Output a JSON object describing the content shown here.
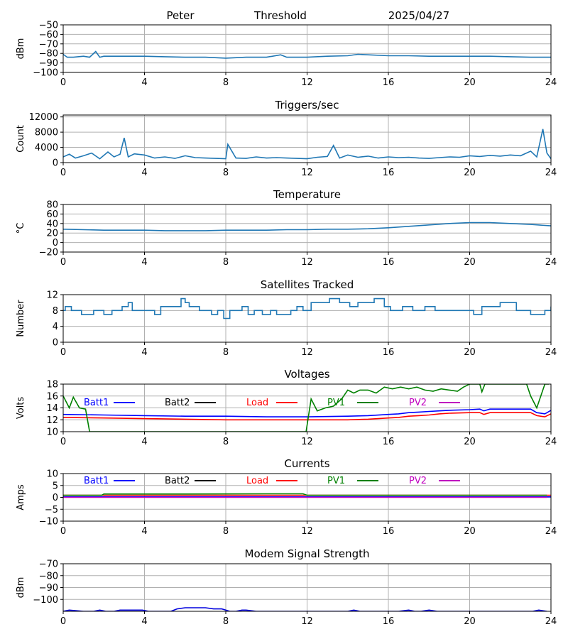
{
  "header": {
    "station": "Peter",
    "mode": "Threshold",
    "date": "2025/04/27"
  },
  "colors": {
    "default_series": "#1f77b4",
    "batt1": "#0000ff",
    "batt2": "#000000",
    "load": "#ff0000",
    "pv1": "#008000",
    "pv2": "#bf00bf",
    "grid": "#b0b0b0"
  },
  "chart_data": [
    {
      "type": "line",
      "title": "",
      "ylabel": "dBm",
      "xlim": [
        0,
        24
      ],
      "xticks": [
        0,
        4,
        8,
        12,
        16,
        20,
        24
      ],
      "ylim": [
        -100,
        -50
      ],
      "yticks": [
        -100,
        -90,
        -80,
        -70,
        -60,
        -50
      ],
      "grid": true,
      "series": [
        {
          "color": "#1f77b4",
          "x": [
            0,
            0.2,
            0.5,
            1.0,
            1.3,
            1.6,
            1.8,
            2.0,
            3,
            4,
            5,
            6,
            7,
            8,
            9,
            10,
            10.7,
            11,
            12,
            13,
            14,
            14.5,
            15,
            16,
            17,
            18,
            19,
            20,
            21,
            22,
            23,
            24
          ],
          "y": [
            -81,
            -84,
            -84,
            -83,
            -84,
            -78,
            -84,
            -83,
            -83,
            -83,
            -83.5,
            -84,
            -84,
            -85,
            -84,
            -84,
            -81.5,
            -84,
            -84,
            -83,
            -82.5,
            -81,
            -81.5,
            -82.5,
            -82.5,
            -83,
            -83,
            -83,
            -83,
            -83.5,
            -84,
            -84
          ]
        }
      ]
    },
    {
      "type": "line",
      "title": "Triggers/sec",
      "ylabel": "Count",
      "xlim": [
        0,
        24
      ],
      "xticks": [
        0,
        4,
        8,
        12,
        16,
        20,
        24
      ],
      "ylim": [
        0,
        12500
      ],
      "yticks": [
        0,
        4000,
        8000,
        12000
      ],
      "grid": true,
      "series": [
        {
          "color": "#1f77b4",
          "x": [
            0,
            0.3,
            0.6,
            1.0,
            1.4,
            1.8,
            2.2,
            2.5,
            2.8,
            3.0,
            3.2,
            3.5,
            4.0,
            4.5,
            5.0,
            5.5,
            6.0,
            6.5,
            7.0,
            7.5,
            8.0,
            8.1,
            8.5,
            9.0,
            9.5,
            10.0,
            10.5,
            11.0,
            11.5,
            12.0,
            12.5,
            13.0,
            13.3,
            13.6,
            14.0,
            14.5,
            15.0,
            15.5,
            16.0,
            16.5,
            17.0,
            17.5,
            18.0,
            18.5,
            19.0,
            19.5,
            20.0,
            20.5,
            21.0,
            21.5,
            22.0,
            22.5,
            23.0,
            23.3,
            23.6,
            23.8,
            24.0
          ],
          "y": [
            1500,
            2200,
            1200,
            1800,
            2500,
            1000,
            2800,
            1500,
            2200,
            6500,
            1500,
            2300,
            2000,
            1200,
            1500,
            1100,
            1800,
            1300,
            1200,
            1100,
            1000,
            4800,
            1200,
            1100,
            1500,
            1200,
            1300,
            1200,
            1100,
            1000,
            1400,
            1600,
            4500,
            1200,
            2000,
            1400,
            1700,
            1200,
            1500,
            1300,
            1400,
            1200,
            1100,
            1300,
            1500,
            1400,
            1800,
            1600,
            1900,
            1700,
            2000,
            1800,
            3000,
            1500,
            8800,
            2500,
            1000
          ]
        }
      ]
    },
    {
      "type": "line",
      "title": "Temperature",
      "ylabel": "°C",
      "xlim": [
        0,
        24
      ],
      "xticks": [
        0,
        4,
        8,
        12,
        16,
        20,
        24
      ],
      "ylim": [
        -20,
        80
      ],
      "yticks": [
        -20,
        0,
        20,
        40,
        60,
        80
      ],
      "grid": true,
      "series": [
        {
          "color": "#1f77b4",
          "x": [
            0,
            1,
            2,
            3,
            4,
            5,
            6,
            7,
            8,
            9,
            10,
            11,
            12,
            13,
            14,
            15,
            16,
            17,
            18,
            19,
            20,
            21,
            22,
            23,
            24
          ],
          "y": [
            28,
            27,
            26,
            26,
            26,
            25,
            25,
            25,
            26,
            26,
            26,
            27,
            27,
            28,
            28,
            29,
            31,
            34,
            37,
            40,
            42,
            42,
            40,
            38,
            35
          ]
        }
      ]
    },
    {
      "type": "line",
      "title": "Satellites Tracked",
      "ylabel": "Number",
      "xlim": [
        0,
        24
      ],
      "xticks": [
        0,
        4,
        8,
        12,
        16,
        20,
        24
      ],
      "ylim": [
        0,
        12
      ],
      "yticks": [
        0,
        4,
        8,
        12
      ],
      "grid": true,
      "series": [
        {
          "color": "#1f77b4",
          "step": true,
          "x": [
            0,
            0.1,
            0.4,
            0.9,
            1.2,
            1.5,
            2.0,
            2.4,
            2.9,
            3.2,
            3.4,
            4.0,
            4.5,
            4.8,
            5.8,
            6.0,
            6.2,
            6.7,
            7.3,
            7.6,
            7.9,
            8.2,
            8.5,
            8.8,
            9.1,
            9.4,
            9.8,
            10.2,
            10.5,
            10.9,
            11.2,
            11.5,
            11.8,
            12.2,
            12.6,
            13.1,
            13.6,
            14.1,
            14.5,
            14.9,
            15.3,
            15.8,
            16.1,
            16.7,
            17.2,
            17.8,
            18.3,
            18.8,
            19.3,
            19.7,
            20.2,
            20.6,
            21.0,
            21.5,
            22.3,
            22.6,
            23.0,
            23.3,
            23.7,
            24.0
          ],
          "y": [
            8,
            9,
            8,
            7,
            7,
            8,
            7,
            8,
            9,
            10,
            8,
            8,
            7,
            9,
            11,
            10,
            9,
            8,
            7,
            8,
            6,
            8,
            8,
            9,
            7,
            8,
            7,
            8,
            7,
            7,
            8,
            9,
            8,
            10,
            10,
            11,
            10,
            9,
            10,
            10,
            11,
            9,
            8,
            9,
            8,
            9,
            8,
            8,
            8,
            8,
            7,
            9,
            9,
            10,
            8,
            8,
            7,
            7,
            8,
            9
          ]
        }
      ]
    },
    {
      "type": "line",
      "title": "Voltages",
      "ylabel": "Volts",
      "xlim": [
        0,
        24
      ],
      "xticks": [
        0,
        4,
        8,
        12,
        16,
        20,
        24
      ],
      "ylim": [
        10,
        18
      ],
      "yticks": [
        10,
        12,
        14,
        16,
        18
      ],
      "grid": true,
      "legend": [
        {
          "label": "Batt1",
          "color": "#0000ff"
        },
        {
          "label": "Batt2",
          "color": "#000000"
        },
        {
          "label": "Load",
          "color": "#ff0000"
        },
        {
          "label": "PV1",
          "color": "#008000"
        },
        {
          "label": "PV2",
          "color": "#bf00bf"
        }
      ],
      "series": [
        {
          "name": "Batt1",
          "color": "#0000ff",
          "x": [
            0,
            2,
            4,
            6,
            8,
            10,
            12,
            14,
            15,
            16,
            16.5,
            17,
            17.5,
            18,
            18.5,
            19,
            20,
            20.5,
            20.7,
            21,
            22,
            23,
            23.3,
            23.7,
            24
          ],
          "y": [
            12.9,
            12.8,
            12.7,
            12.6,
            12.6,
            12.5,
            12.5,
            12.6,
            12.7,
            12.9,
            13.0,
            13.2,
            13.3,
            13.4,
            13.5,
            13.6,
            13.7,
            13.8,
            13.5,
            13.8,
            13.8,
            13.8,
            13.2,
            13.0,
            13.6
          ]
        },
        {
          "name": "Load",
          "color": "#ff0000",
          "x": [
            0,
            2,
            4,
            6,
            8,
            10,
            12,
            14,
            15,
            16,
            16.5,
            17,
            17.5,
            18,
            18.5,
            19,
            20,
            20.5,
            20.7,
            21,
            22,
            23,
            23.3,
            23.7,
            24
          ],
          "y": [
            12.4,
            12.3,
            12.2,
            12.1,
            12.0,
            12.0,
            12.0,
            12.0,
            12.1,
            12.3,
            12.4,
            12.6,
            12.7,
            12.8,
            13.0,
            13.1,
            13.2,
            13.2,
            12.9,
            13.2,
            13.2,
            13.2,
            12.7,
            12.5,
            13.0
          ]
        },
        {
          "name": "PV1",
          "color": "#008000",
          "x": [
            0,
            0.3,
            0.5,
            0.8,
            1.1,
            1.3,
            11.95,
            12.2,
            12.5,
            12.9,
            13.3,
            13.7,
            14.0,
            14.3,
            14.6,
            15.0,
            15.4,
            15.8,
            16.2,
            16.6,
            17.0,
            17.4,
            17.8,
            18.2,
            18.6,
            19.0,
            19.4,
            19.7,
            20.0,
            20.2,
            20.5,
            20.6,
            20.75,
            20.85,
            22.8,
            23.0,
            23.3,
            23.7,
            23.9
          ],
          "y": [
            16.0,
            14.0,
            15.8,
            14.0,
            13.8,
            10.0,
            10.0,
            15.5,
            13.5,
            14.0,
            14.3,
            15.5,
            17.0,
            16.5,
            17.0,
            17.0,
            16.5,
            17.5,
            17.2,
            17.5,
            17.2,
            17.5,
            17.0,
            16.8,
            17.2,
            17.0,
            16.8,
            17.5,
            18.0,
            18.0,
            18.0,
            16.7,
            18.0,
            18.0,
            18.0,
            16.0,
            14.0,
            18.0,
            18.0
          ]
        }
      ]
    },
    {
      "type": "line",
      "title": "Currents",
      "ylabel": "Amps",
      "xlim": [
        0,
        24
      ],
      "xticks": [
        0,
        4,
        8,
        12,
        16,
        20,
        24
      ],
      "ylim": [
        -10,
        10
      ],
      "yticks": [
        -10,
        -5,
        0,
        5,
        10
      ],
      "grid": true,
      "legend": [
        {
          "label": "Batt1",
          "color": "#0000ff"
        },
        {
          "label": "Batt2",
          "color": "#000000"
        },
        {
          "label": "Load",
          "color": "#ff0000"
        },
        {
          "label": "PV1",
          "color": "#008000"
        },
        {
          "label": "PV2",
          "color": "#bf00bf"
        }
      ],
      "series": [
        {
          "name": "Batt1",
          "color": "#0000ff",
          "x": [
            0,
            4,
            8,
            12,
            16,
            20,
            24
          ],
          "y": [
            0.2,
            0.2,
            0.2,
            0.2,
            0.2,
            0.2,
            0.2
          ]
        },
        {
          "name": "Load",
          "color": "#ff0000",
          "x": [
            0,
            4,
            8,
            12,
            16,
            20,
            24
          ],
          "y": [
            0.9,
            0.9,
            0.9,
            0.9,
            0.9,
            0.9,
            0.9
          ]
        },
        {
          "name": "PV1",
          "color": "#008000",
          "x": [
            0,
            1.9,
            2.0,
            6,
            10,
            11.8,
            12.0,
            16,
            20,
            23.8
          ],
          "y": [
            0.9,
            0.9,
            1.4,
            1.4,
            1.5,
            1.5,
            0.9,
            0.9,
            0.9,
            0.9
          ]
        },
        {
          "name": "PV2",
          "color": "#bf00bf",
          "x": [
            0,
            4,
            8,
            12,
            16,
            20,
            23.8
          ],
          "y": [
            0.0,
            0.0,
            0.0,
            0.0,
            0.0,
            0.0,
            0.0
          ]
        }
      ]
    },
    {
      "type": "line",
      "title": "Modem Signal Strength",
      "ylabel": "dBm",
      "xlim": [
        0,
        24
      ],
      "xticks": [
        0,
        4,
        8,
        12,
        16,
        20,
        24
      ],
      "ylim": [
        -110,
        -70
      ],
      "yticks": [
        -100,
        -90,
        -80,
        -70
      ],
      "grid": true,
      "series": [
        {
          "color": "#0000dd",
          "x": [
            0,
            0.3,
            1.0,
            1.5,
            1.8,
            2.1,
            2.5,
            2.8,
            3.0,
            3.5,
            3.9,
            4.2,
            4.5,
            5.0,
            5.3,
            5.6,
            6.0,
            6.5,
            7.0,
            7.4,
            7.8,
            8.2,
            8.5,
            8.8,
            9.0,
            9.5,
            10,
            11,
            12,
            13,
            14,
            14.3,
            14.6,
            15,
            16,
            16.5,
            17.0,
            17.3,
            17.6,
            18.0,
            18.4,
            19,
            20,
            21,
            22,
            22.8,
            23.1,
            23.4,
            23.8
          ],
          "y": [
            -110,
            -109,
            -110,
            -110,
            -109,
            -110,
            -110,
            -109,
            -109,
            -109,
            -109,
            -110,
            -110,
            -110,
            -110,
            -108,
            -107,
            -107,
            -107,
            -108,
            -108,
            -110,
            -110,
            -109,
            -109,
            -110,
            -110,
            -110,
            -110,
            -110,
            -110,
            -109,
            -110,
            -110,
            -110,
            -110,
            -109,
            -110,
            -110,
            -109,
            -110,
            -110,
            -110,
            -110,
            -110,
            -110,
            -110,
            -109,
            -110
          ]
        }
      ]
    }
  ]
}
